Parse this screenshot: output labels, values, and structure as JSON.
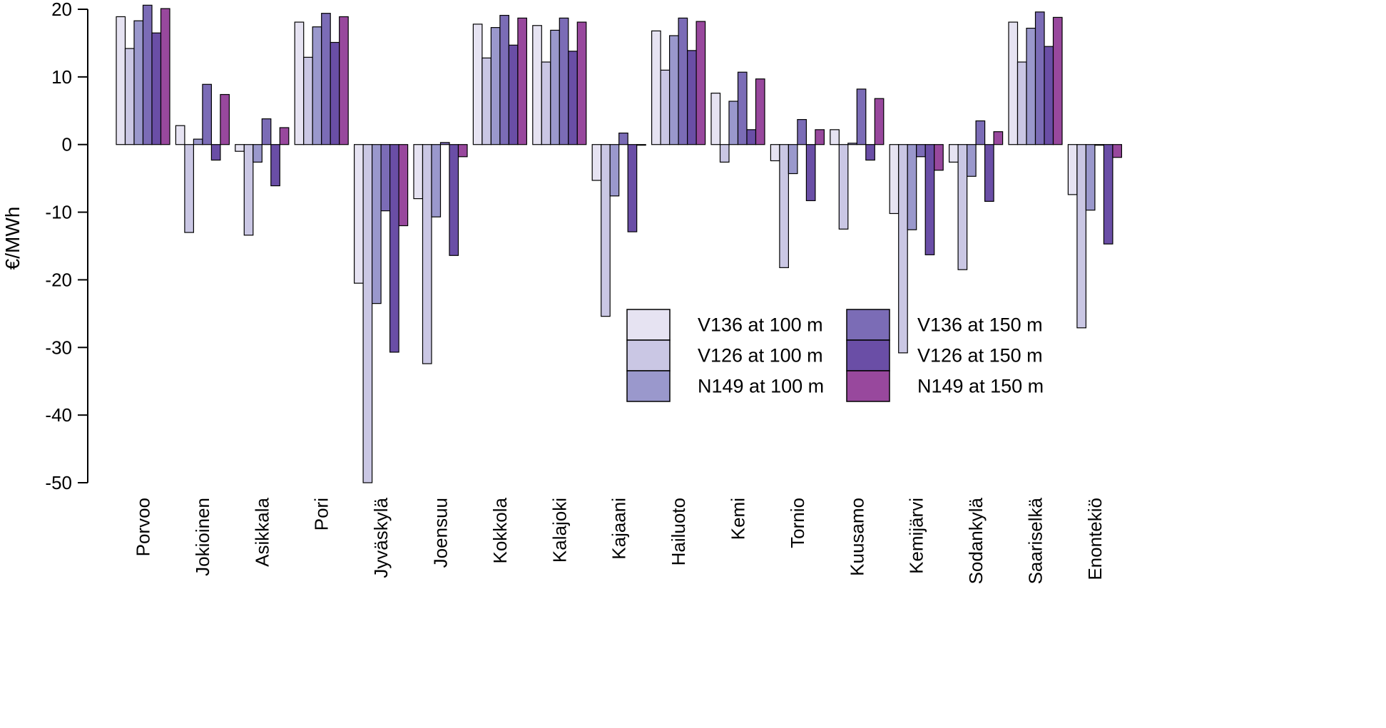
{
  "chart_data": {
    "type": "bar",
    "title": "",
    "xlabel": "",
    "ylabel": "€/MWh",
    "ylim": [
      -50,
      20
    ],
    "yticks": [
      20,
      10,
      0,
      -10,
      -20,
      -30,
      -40,
      -50
    ],
    "grid": false,
    "legend_position": "bottom-right",
    "categories": [
      "Porvoo",
      "Jokioinen",
      "Asikkala",
      "Pori",
      "Jyväskylä",
      "Joensuu",
      "Kokkola",
      "Kalajoki",
      "Kajaani",
      "Hailuoto",
      "Kemi",
      "Tornio",
      "Kuusamo",
      "Kemijärvi",
      "Sodankylä",
      "Saariselkä",
      "Enontekiö"
    ],
    "series": [
      {
        "name": "V136 at 100 m",
        "color": "#e6e3f2",
        "values": [
          18.9,
          2.8,
          -1.0,
          18.1,
          -20.5,
          -8.0,
          17.8,
          17.6,
          -5.3,
          16.8,
          7.6,
          -2.4,
          2.2,
          -10.2,
          -2.6,
          18.1,
          -7.4
        ]
      },
      {
        "name": "V126 at 100 m",
        "color": "#cac7e4",
        "values": [
          14.2,
          -13.0,
          -13.4,
          12.9,
          -50.0,
          -32.4,
          12.8,
          12.2,
          -25.4,
          11.0,
          -2.6,
          -18.2,
          -12.5,
          -30.8,
          -18.5,
          12.2,
          -27.1
        ]
      },
      {
        "name": "N149 at 100 m",
        "color": "#9a98cc",
        "values": [
          18.3,
          0.8,
          -2.6,
          17.4,
          -23.5,
          -10.7,
          17.3,
          16.9,
          -7.6,
          16.1,
          6.4,
          -4.3,
          0.2,
          -12.6,
          -4.7,
          17.2,
          -9.7
        ]
      },
      {
        "name": "V136 at 150 m",
        "color": "#7b6cb6",
        "values": [
          20.6,
          8.9,
          3.8,
          19.4,
          -9.8,
          0.3,
          19.1,
          18.7,
          1.7,
          18.7,
          10.7,
          3.7,
          8.2,
          -1.8,
          3.5,
          19.6,
          -0.1
        ]
      },
      {
        "name": "V126 at 150 m",
        "color": "#6a4ea6",
        "values": [
          16.5,
          -2.3,
          -6.1,
          15.1,
          -30.7,
          -16.4,
          14.7,
          13.8,
          -12.9,
          13.9,
          2.2,
          -8.3,
          -2.3,
          -16.3,
          -8.4,
          14.5,
          -14.7
        ]
      },
      {
        "name": "N149 at 150 m",
        "color": "#98489d",
        "values": [
          20.1,
          7.4,
          2.5,
          18.9,
          -12.0,
          -1.8,
          18.7,
          18.1,
          -0.1,
          18.2,
          9.7,
          2.2,
          6.8,
          -3.8,
          1.9,
          18.8,
          -1.9
        ]
      }
    ]
  }
}
